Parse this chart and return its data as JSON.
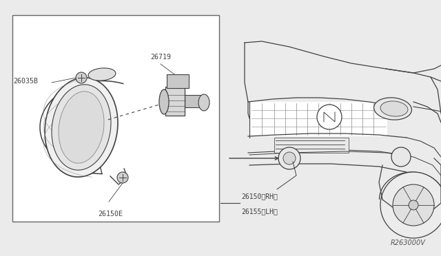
{
  "bg_color": "#ebebeb",
  "line_color": "#404040",
  "text_color": "#404040",
  "ref_code": "R263000V",
  "label_26035B": "26035B",
  "label_26719": "26719",
  "label_26150E": "26150E",
  "label_26150RH": "26150〈RH〉",
  "label_26155LH": "26155〈LH〉"
}
